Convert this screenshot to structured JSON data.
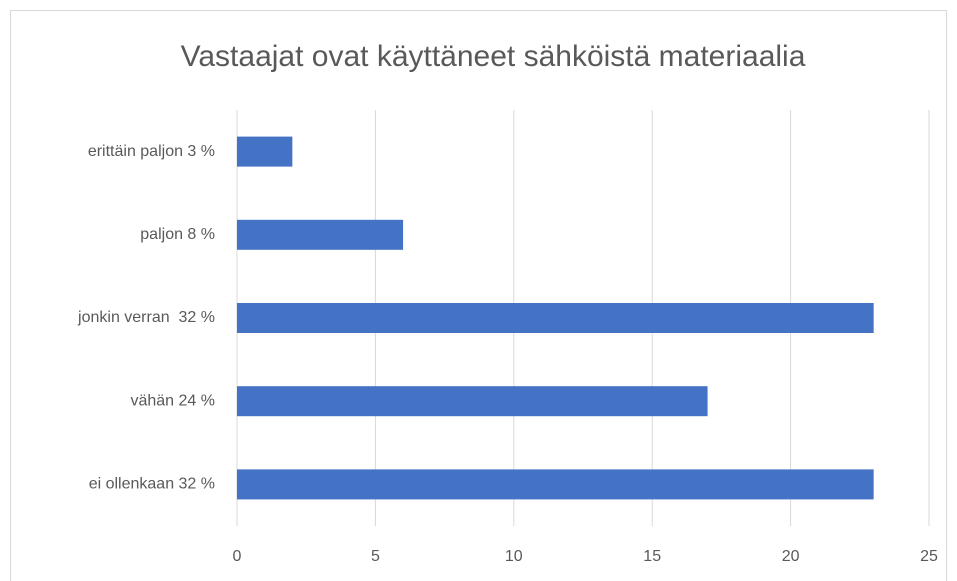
{
  "chart_data": {
    "type": "bar",
    "orientation": "horizontal",
    "title": "Vastaajat ovat käyttäneet sähköistä materiaalia",
    "categories": [
      "erittäin paljon 3 %",
      "paljon 8 %",
      "jonkin verran  32 %",
      "vähän 24 %",
      "ei ollenkaan 32 %"
    ],
    "values": [
      2,
      6,
      23,
      17,
      23
    ],
    "color": "#4472c4",
    "xlim": [
      0,
      25
    ],
    "xticks": [
      0,
      5,
      10,
      15,
      20,
      25
    ],
    "grid": true
  }
}
